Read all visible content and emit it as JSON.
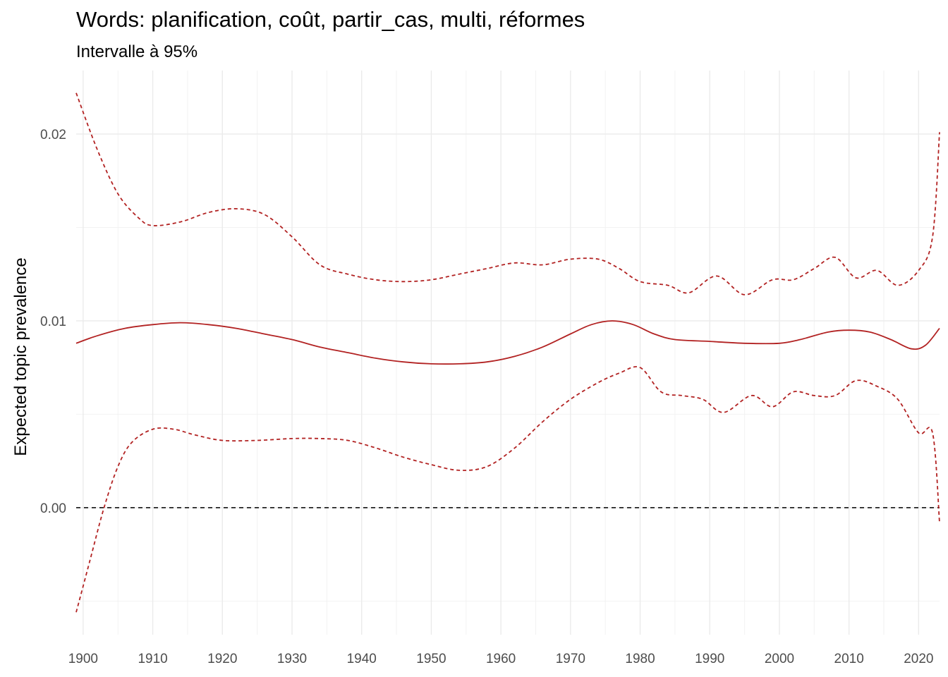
{
  "chart_data": {
    "type": "line",
    "title": "Words: planification, coût, partir_cas, multi, réformes",
    "subtitle": "Intervalle à 95%",
    "xlabel": "",
    "ylabel": "Expected topic prevalence",
    "xlim": [
      1899,
      2023
    ],
    "ylim": [
      -0.0068,
      0.0234
    ],
    "x_ticks": [
      1900,
      1910,
      1920,
      1930,
      1940,
      1950,
      1960,
      1970,
      1980,
      1990,
      2000,
      2010,
      2020
    ],
    "y_ticks": [
      0.0,
      0.01,
      0.02
    ],
    "y_tick_labels": [
      "0.00",
      "0.01",
      "0.02"
    ],
    "reference_line": {
      "y": 0.0,
      "style": "dashed",
      "color": "#000000"
    },
    "grid": true,
    "series": [
      {
        "name": "estimate",
        "style": "solid",
        "color": "#b22222",
        "x": [
          1899,
          1902,
          1906,
          1910,
          1914,
          1918,
          1922,
          1926,
          1930,
          1934,
          1938,
          1942,
          1946,
          1950,
          1954,
          1958,
          1962,
          1966,
          1970,
          1973,
          1976,
          1979,
          1982,
          1985,
          1990,
          1995,
          2000,
          2003,
          2007,
          2010,
          2013,
          2016,
          2019,
          2021,
          2023
        ],
        "y": [
          0.0088,
          0.0092,
          0.0096,
          0.0098,
          0.0099,
          0.0098,
          0.0096,
          0.0093,
          0.009,
          0.0086,
          0.0083,
          0.008,
          0.0078,
          0.0077,
          0.0077,
          0.0078,
          0.0081,
          0.0086,
          0.0093,
          0.0098,
          0.01,
          0.0098,
          0.0093,
          0.009,
          0.0089,
          0.0088,
          0.0088,
          0.009,
          0.0094,
          0.0095,
          0.0094,
          0.009,
          0.0085,
          0.0087,
          0.0096
        ]
      },
      {
        "name": "upper 95%",
        "style": "dashed",
        "color": "#b22222",
        "x": [
          1899,
          1902,
          1905,
          1908,
          1910,
          1914,
          1918,
          1922,
          1926,
          1930,
          1934,
          1938,
          1942,
          1946,
          1950,
          1954,
          1958,
          1962,
          1966,
          1970,
          1974,
          1977,
          1980,
          1984,
          1987,
          1991,
          1995,
          1999,
          2002,
          2005,
          2008,
          2011,
          2014,
          2017,
          2020,
          2022,
          2023
        ],
        "y": [
          0.0222,
          0.0192,
          0.0168,
          0.0155,
          0.0151,
          0.0153,
          0.0158,
          0.016,
          0.0157,
          0.0145,
          0.013,
          0.0125,
          0.0122,
          0.0121,
          0.0122,
          0.0125,
          0.0128,
          0.0131,
          0.013,
          0.0133,
          0.0133,
          0.0128,
          0.0121,
          0.0119,
          0.0115,
          0.0124,
          0.0114,
          0.0122,
          0.0122,
          0.0128,
          0.0134,
          0.0123,
          0.0127,
          0.0119,
          0.0127,
          0.0145,
          0.0201
        ]
      },
      {
        "name": "lower 95%",
        "style": "dashed",
        "color": "#b22222",
        "x": [
          1899,
          1901,
          1903,
          1905,
          1907,
          1910,
          1913,
          1916,
          1920,
          1925,
          1930,
          1934,
          1938,
          1942,
          1946,
          1950,
          1954,
          1958,
          1962,
          1966,
          1970,
          1974,
          1977,
          1980,
          1983,
          1986,
          1989,
          1992,
          1996,
          1999,
          2002,
          2005,
          2008,
          2011,
          2014,
          2017,
          2020,
          2022,
          2023
        ],
        "y": [
          -0.0056,
          -0.0028,
          0.0,
          0.0022,
          0.0035,
          0.0042,
          0.0042,
          0.0039,
          0.0036,
          0.0036,
          0.0037,
          0.0037,
          0.0036,
          0.0032,
          0.0027,
          0.0023,
          0.002,
          0.0022,
          0.0032,
          0.0046,
          0.0058,
          0.0067,
          0.0072,
          0.0075,
          0.0062,
          0.006,
          0.0058,
          0.0051,
          0.006,
          0.0054,
          0.0062,
          0.006,
          0.006,
          0.0068,
          0.0065,
          0.0058,
          0.004,
          0.004,
          -0.0008
        ]
      }
    ]
  }
}
